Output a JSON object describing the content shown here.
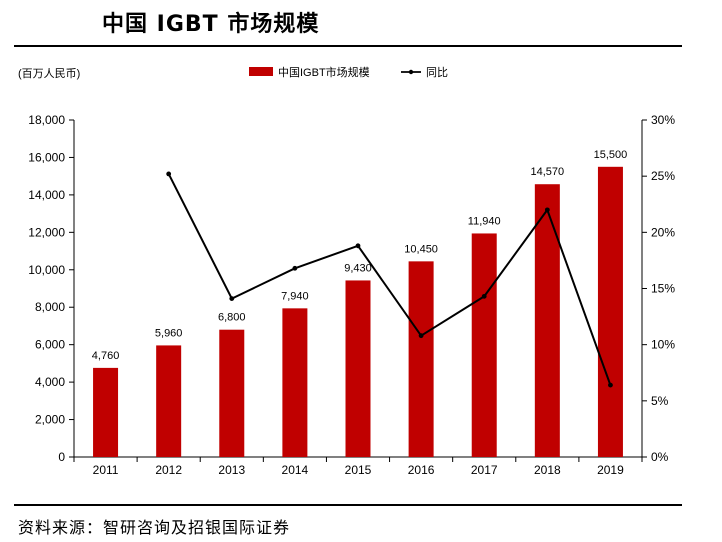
{
  "header": {
    "title": "中国 IGBT 市场规模"
  },
  "footer": {
    "source": "资料来源：智研咨询及招银国际证券"
  },
  "colors": {
    "bar": "#C00000",
    "line": "#000000",
    "axis": "#000000"
  },
  "chart_data": {
    "type": "bar",
    "unit_label": "(百万人民币)",
    "categories": [
      "2011",
      "2012",
      "2013",
      "2014",
      "2015",
      "2016",
      "2017",
      "2018",
      "2019"
    ],
    "series": [
      {
        "name": "中国IGBT市场规模",
        "type": "bar",
        "axis": "left",
        "values": [
          4760,
          5960,
          6800,
          7940,
          9430,
          10450,
          11940,
          14570,
          15500
        ],
        "labels": [
          "4,760",
          "5,960",
          "6,800",
          "7,940",
          "9,430",
          "10,450",
          "11,940",
          "14,570",
          "15,500"
        ]
      },
      {
        "name": "同比",
        "type": "line",
        "axis": "right",
        "values": [
          null,
          25.2,
          14.1,
          16.8,
          18.8,
          10.8,
          14.3,
          22.0,
          6.4
        ]
      }
    ],
    "y_left": {
      "min": 0,
      "max": 18000,
      "ticks": [
        0,
        2000,
        4000,
        6000,
        8000,
        10000,
        12000,
        14000,
        16000,
        18000
      ],
      "tick_labels": [
        "0",
        "2,000",
        "4,000",
        "6,000",
        "8,000",
        "10,000",
        "12,000",
        "14,000",
        "16,000",
        "18,000"
      ]
    },
    "y_right": {
      "min": 0,
      "max": 30,
      "ticks": [
        0,
        5,
        10,
        15,
        20,
        25,
        30
      ],
      "tick_labels": [
        "0%",
        "5%",
        "10%",
        "15%",
        "20%",
        "25%",
        "30%"
      ]
    },
    "legend_position": "top",
    "grid": false
  }
}
